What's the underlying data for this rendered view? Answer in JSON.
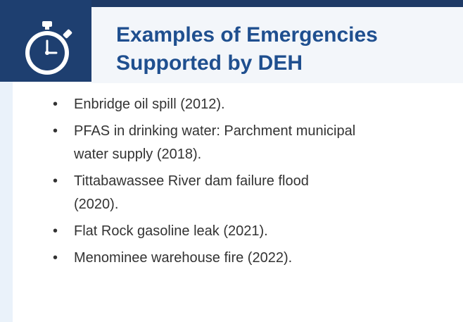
{
  "header": {
    "title": [
      "Examples of Emergencies",
      "Supported by DEH"
    ]
  },
  "bullets": [
    [
      "Enbridge oil spill (2012)."
    ],
    [
      "PFAS in drinking water: Parchment municipal",
      "water supply (2018)."
    ],
    [
      "Tittabawassee River dam failure flood",
      "(2020)."
    ],
    [
      "Flat Rock gasoline leak (2021)."
    ],
    [
      "Menominee warehouse fire (2022)."
    ]
  ]
}
